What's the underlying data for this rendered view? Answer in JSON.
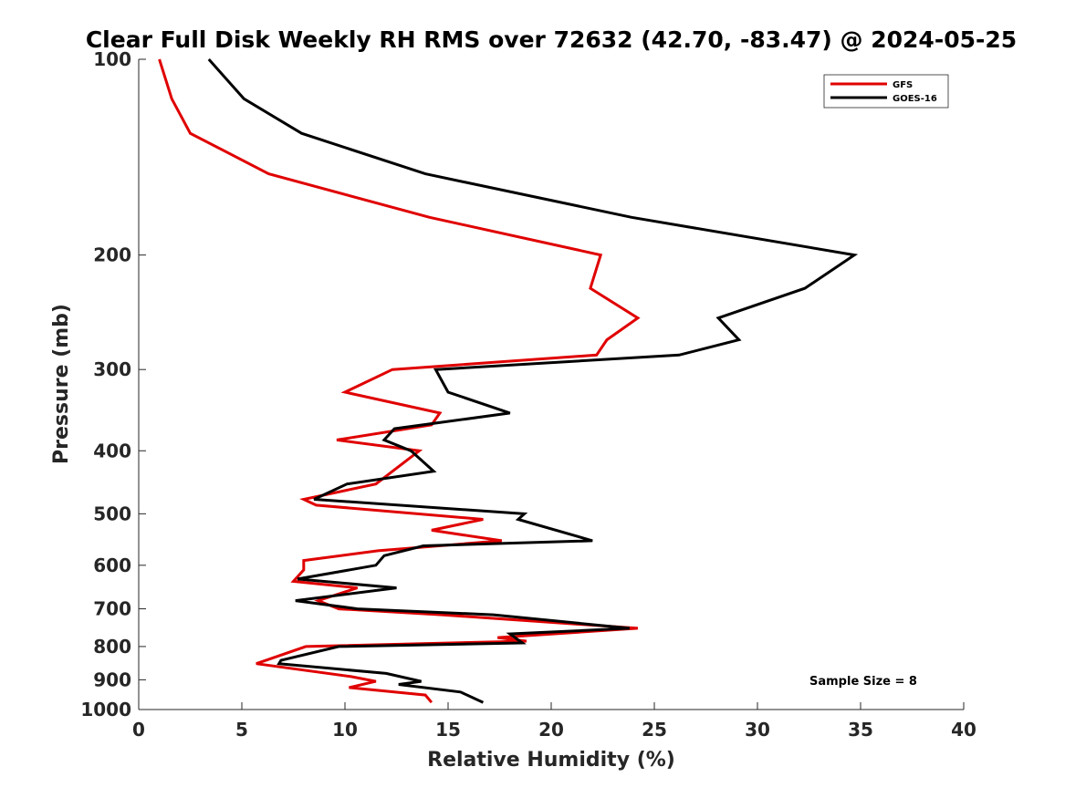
{
  "chart_data": {
    "type": "line",
    "title": "Clear Full Disk Weekly RH RMS over 72632 (42.70, -83.47) @ 2024-05-25",
    "xlabel": "Relative Humidity (%)",
    "ylabel": "Pressure (mb)",
    "xlim": [
      0,
      40
    ],
    "ylim": [
      100,
      1000
    ],
    "y_scale": "log",
    "y_reversed": true,
    "x_ticks": [
      "0",
      "5",
      "10",
      "15",
      "20",
      "25",
      "30",
      "35",
      "40"
    ],
    "y_ticks": [
      "100",
      "200",
      "300",
      "400",
      "500",
      "600",
      "700",
      "800",
      "900",
      "1000"
    ],
    "grid": false,
    "legend_position": "top-right",
    "annotation": "Sample Size = 8",
    "series": [
      {
        "name": "GFS",
        "color": "#e00000",
        "points": [
          [
            1.0,
            100
          ],
          [
            1.6,
            115
          ],
          [
            2.5,
            130
          ],
          [
            6.3,
            150
          ],
          [
            14.1,
            175
          ],
          [
            22.4,
            200
          ],
          [
            21.9,
            225
          ],
          [
            24.2,
            250
          ],
          [
            22.7,
            270
          ],
          [
            22.2,
            285
          ],
          [
            12.3,
            300
          ],
          [
            10.0,
            325
          ],
          [
            14.6,
            350
          ],
          [
            14.2,
            365
          ],
          [
            9.6,
            385
          ],
          [
            13.6,
            400
          ],
          [
            11.5,
            450
          ],
          [
            8.0,
            475
          ],
          [
            8.6,
            485
          ],
          [
            16.7,
            510
          ],
          [
            14.2,
            530
          ],
          [
            17.6,
            550
          ],
          [
            11.6,
            570
          ],
          [
            8.0,
            590
          ],
          [
            8.0,
            610
          ],
          [
            7.5,
            635
          ],
          [
            10.6,
            650
          ],
          [
            8.7,
            680
          ],
          [
            9.7,
            700
          ],
          [
            14.7,
            715
          ],
          [
            24.2,
            750
          ],
          [
            17.4,
            775
          ],
          [
            18.8,
            785
          ],
          [
            8.1,
            800
          ],
          [
            5.7,
            850
          ],
          [
            10.3,
            890
          ],
          [
            11.5,
            905
          ],
          [
            10.2,
            925
          ],
          [
            13.9,
            950
          ],
          [
            14.2,
            975
          ]
        ]
      },
      {
        "name": "GOES-16",
        "color": "#000000",
        "points": [
          [
            3.4,
            100
          ],
          [
            5.1,
            115
          ],
          [
            7.9,
            130
          ],
          [
            13.9,
            150
          ],
          [
            23.9,
            175
          ],
          [
            34.7,
            200
          ],
          [
            32.3,
            225
          ],
          [
            28.1,
            250
          ],
          [
            29.1,
            270
          ],
          [
            26.2,
            285
          ],
          [
            14.4,
            300
          ],
          [
            15.0,
            325
          ],
          [
            18.0,
            350
          ],
          [
            12.4,
            370
          ],
          [
            11.9,
            385
          ],
          [
            13.2,
            400
          ],
          [
            14.3,
            430
          ],
          [
            10.1,
            450
          ],
          [
            8.5,
            475
          ],
          [
            18.7,
            500
          ],
          [
            18.4,
            510
          ],
          [
            22.0,
            550
          ],
          [
            13.8,
            560
          ],
          [
            11.9,
            580
          ],
          [
            11.5,
            600
          ],
          [
            7.7,
            630
          ],
          [
            12.5,
            650
          ],
          [
            7.6,
            680
          ],
          [
            10.6,
            700
          ],
          [
            17.2,
            715
          ],
          [
            23.8,
            750
          ],
          [
            18.0,
            765
          ],
          [
            18.6,
            790
          ],
          [
            9.7,
            800
          ],
          [
            6.9,
            840
          ],
          [
            6.8,
            850
          ],
          [
            12.0,
            880
          ],
          [
            13.7,
            905
          ],
          [
            12.6,
            915
          ],
          [
            15.6,
            940
          ],
          [
            16.7,
            975
          ]
        ]
      }
    ]
  }
}
